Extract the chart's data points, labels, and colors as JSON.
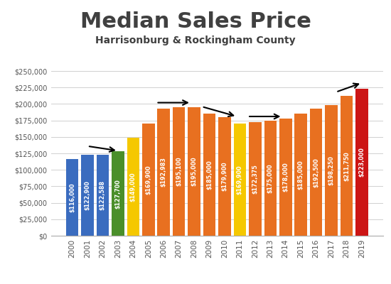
{
  "title": "Median Sales Price",
  "subtitle": "Harrisonburg & Rockingham County",
  "years": [
    2000,
    2001,
    2002,
    2003,
    2004,
    2005,
    2006,
    2007,
    2008,
    2009,
    2010,
    2011,
    2012,
    2013,
    2014,
    2015,
    2016,
    2017,
    2018,
    2019
  ],
  "values": [
    116000,
    122900,
    122588,
    127700,
    149000,
    169900,
    192983,
    195100,
    195000,
    185000,
    179900,
    169900,
    172375,
    175000,
    178000,
    185000,
    192500,
    198250,
    211750,
    223000
  ],
  "labels": [
    "$116,000",
    "$122,900",
    "$122,588",
    "$127,700",
    "$149,000",
    "$169,900",
    "$192,983",
    "$195,100",
    "$195,000",
    "$185,000",
    "$179,900",
    "$169,900",
    "$172,375",
    "$175,000",
    "$178,000",
    "$185,000",
    "$192,500",
    "$198,250",
    "$211,750",
    "$223,000"
  ],
  "colors": [
    "#3a6cbf",
    "#3a6cbf",
    "#3a6cbf",
    "#4a8f2a",
    "#f5c800",
    "#e87020",
    "#e87020",
    "#e87020",
    "#e87020",
    "#e87020",
    "#e87020",
    "#f5c800",
    "#e87020",
    "#e87020",
    "#e87020",
    "#e87020",
    "#e87020",
    "#e87020",
    "#e87020",
    "#cc1515"
  ],
  "ylim": [
    0,
    250000
  ],
  "yticks": [
    0,
    25000,
    50000,
    75000,
    100000,
    125000,
    150000,
    175000,
    200000,
    225000,
    250000
  ],
  "ytick_labels": [
    "$0",
    "$25,000",
    "$50,000",
    "$75,000",
    "$100,000",
    "$125,000",
    "$150,000",
    "$175,000",
    "$200,000",
    "$225,000",
    "$250,000"
  ],
  "bg_color": "#ffffff",
  "grid_color": "#d0d0d0",
  "title_color": "#404040",
  "subtitle_color": "#404040",
  "text_color": "#ffffff",
  "title_fontsize": 22,
  "subtitle_fontsize": 10
}
